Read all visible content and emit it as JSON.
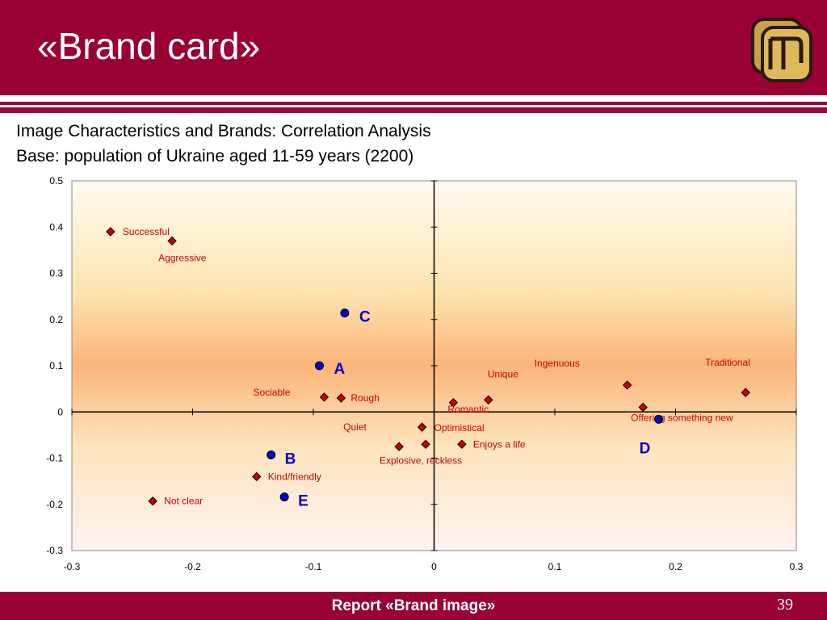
{
  "slide": {
    "title": "«Brand card»",
    "subtitle_line1": "Image Characteristics and Brands: Correlation Analysis",
    "subtitle_line2": "Base: population of Ukraine aged 11-59 years (2200)",
    "footer": "Report «Brand image»",
    "page_number": "39"
  },
  "colors": {
    "header": "#990033",
    "marker": "#cc0000",
    "brand": "#0000cc",
    "label": "#cc0000"
  },
  "chart_data": {
    "type": "scatter",
    "xlim": [
      -0.3,
      0.3
    ],
    "ylim": [
      -0.3,
      0.5
    ],
    "x_ticks": [
      -0.3,
      -0.2,
      -0.1,
      0,
      0.1,
      0.2,
      0.3
    ],
    "y_ticks": [
      -0.3,
      -0.2,
      -0.1,
      0,
      0.1,
      0.2,
      0.3,
      0.4,
      0.5
    ],
    "x_tick_labels": [
      "-0.3",
      "-0.2",
      "-0.1",
      "0",
      "0.1",
      "0.2",
      "0.3"
    ],
    "y_tick_labels": [
      "-0.3",
      "-0.2",
      "-0.1",
      "0",
      "0.1",
      "0.2",
      "0.3",
      "0.4",
      "0.5"
    ],
    "grid": false,
    "characteristics": [
      {
        "label": "Successful",
        "x": -0.268,
        "y": 0.39
      },
      {
        "label": "Aggressive",
        "x": -0.217,
        "y": 0.37
      },
      {
        "label": "Sociable",
        "x": -0.091,
        "y": 0.032
      },
      {
        "label": "Rough",
        "x": -0.077,
        "y": 0.03
      },
      {
        "label": "Quiet",
        "x": -0.029,
        "y": -0.075
      },
      {
        "label": "Optimistical",
        "x": -0.01,
        "y": -0.033
      },
      {
        "label": "Explosive, reckless",
        "x": -0.007,
        "y": -0.07
      },
      {
        "label": "Enjoys a life",
        "x": 0.023,
        "y": -0.07
      },
      {
        "label": "Romantic",
        "x": 0.016,
        "y": 0.02
      },
      {
        "label": "Unique",
        "x": 0.045,
        "y": 0.026
      },
      {
        "label": "Ingenuous",
        "x": 0.16,
        "y": 0.058
      },
      {
        "label": "Offering something new",
        "x": 0.173,
        "y": 0.01
      },
      {
        "label": "Traditional",
        "x": 0.258,
        "y": 0.042
      },
      {
        "label": "Kind/friendly",
        "x": -0.147,
        "y": -0.14
      },
      {
        "label": "Not clear",
        "x": -0.233,
        "y": -0.193
      }
    ],
    "brands": [
      {
        "label": "C",
        "x": -0.074,
        "y": 0.214
      },
      {
        "label": "A",
        "x": -0.095,
        "y": 0.1
      },
      {
        "label": "B",
        "x": -0.135,
        "y": -0.093
      },
      {
        "label": "E",
        "x": -0.124,
        "y": -0.184
      },
      {
        "label": "D",
        "x": 0.186,
        "y": -0.016
      }
    ]
  }
}
